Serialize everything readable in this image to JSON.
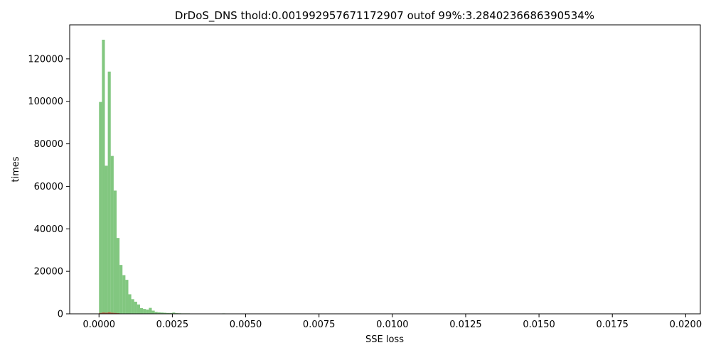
{
  "chart_data": {
    "type": "bar",
    "title": "DrDoS_DNS thold:0.001992957671172907 outof 99%:3.2840236686390534%",
    "xlabel": "SSE loss",
    "ylabel": "times",
    "xlim": [
      -0.001,
      0.0205
    ],
    "ylim": [
      0,
      136000
    ],
    "grid": false,
    "bin_width": 0.0001,
    "x_ticks": [
      0.0,
      0.0025,
      0.005,
      0.0075,
      0.01,
      0.0125,
      0.015,
      0.0175,
      0.02
    ],
    "x_tick_labels": [
      "0.0000",
      "0.0025",
      "0.0050",
      "0.0075",
      "0.0100",
      "0.0125",
      "0.0150",
      "0.0175",
      "0.0200"
    ],
    "y_ticks": [
      0,
      20000,
      40000,
      60000,
      80000,
      100000,
      120000
    ],
    "y_tick_labels": [
      "0",
      "20000",
      "40000",
      "60000",
      "80000",
      "100000",
      "120000"
    ],
    "series": [
      {
        "color": "#4daf4a",
        "opacity": 0.7,
        "bins_start": [
          0.0,
          0.0001,
          0.0002,
          0.0003,
          0.0004,
          0.0005,
          0.0006,
          0.0007,
          0.0008,
          0.0009,
          0.001,
          0.0011,
          0.0012,
          0.0013,
          0.0014,
          0.0015,
          0.0016,
          0.0017,
          0.0018,
          0.0019,
          0.002,
          0.0021,
          0.0022,
          0.0023,
          0.0024,
          0.0025,
          0.0026,
          0.0027,
          0.0028,
          0.0029,
          0.003,
          0.0031,
          0.0032,
          0.0033,
          0.0034,
          0.0035,
          0.0036,
          0.0037,
          0.0038,
          0.0039,
          0.004,
          0.0041,
          0.0042
        ],
        "values": [
          99700,
          129000,
          69700,
          114000,
          74300,
          58000,
          35700,
          23000,
          18200,
          16000,
          9200,
          6900,
          5700,
          4400,
          2700,
          2300,
          2000,
          2800,
          1500,
          900,
          700,
          600,
          500,
          400,
          400,
          600,
          300,
          250,
          200,
          200,
          200,
          150,
          150,
          120,
          100,
          100,
          100,
          80,
          60,
          50,
          50,
          40,
          200
        ]
      },
      {
        "color": "#e41a1c",
        "opacity": 0.6,
        "bins_start": [
          0.0,
          0.0001,
          0.0002,
          0.0003,
          0.0004,
          0.0005,
          0.0006
        ],
        "values": [
          400,
          600,
          500,
          700,
          500,
          400,
          300
        ]
      }
    ]
  }
}
